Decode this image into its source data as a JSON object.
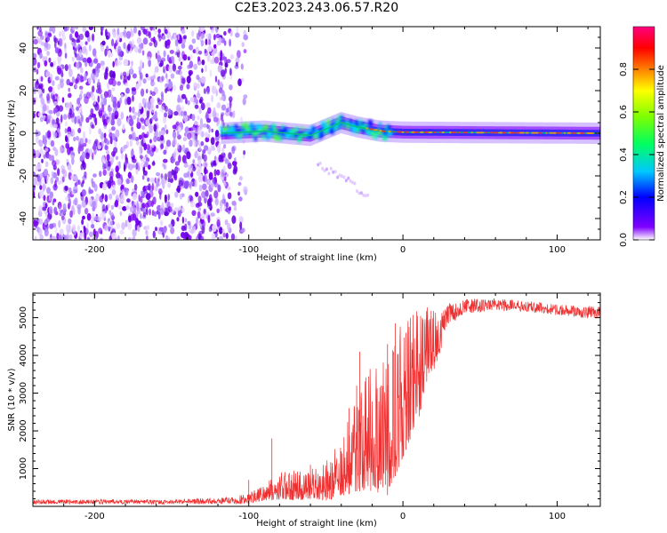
{
  "title": "C2E3.2023.243.06.57.R20",
  "chart_data": [
    {
      "type": "heatmap",
      "title": "C2E3.2023.243.06.57.R20",
      "xlabel": "Height of straight line (km)",
      "ylabel": "Frequency (Hz)",
      "xlim": [
        -240,
        128
      ],
      "ylim": [
        -50,
        50
      ],
      "xticks": [
        -200,
        -100,
        0,
        100
      ],
      "yticks": [
        -40,
        -20,
        0,
        20,
        40
      ],
      "colorbar": {
        "label": "Normalized spectral amplitude",
        "range": [
          0,
          1
        ],
        "ticks": [
          "0.0",
          "0.2",
          "0.4",
          "0.6",
          "0.8"
        ],
        "colormap": "rainbow",
        "colors": [
          "#ffffff",
          "#8000ff",
          "#0000ff",
          "#00c8ff",
          "#00ff60",
          "#80ff00",
          "#ffff00",
          "#ff8000",
          "#ff0000",
          "#ff0080"
        ]
      },
      "regions": [
        {
          "name": "noise",
          "x_range": [
            -240,
            -110
          ],
          "y_range": [
            -50,
            50
          ],
          "amplitude": 0.05
        },
        {
          "name": "signal",
          "x_range": [
            -118,
            128
          ],
          "center_hz": [
            [
              -118,
              0
            ],
            [
              -90,
              1
            ],
            [
              -60,
              -1
            ],
            [
              -40,
              5
            ],
            [
              -30,
              3
            ],
            [
              -15,
              1
            ],
            [
              0,
              0.5
            ],
            [
              128,
              0
            ]
          ],
          "amplitude": [
            0.3,
            0.9
          ]
        },
        {
          "name": "branch",
          "x_range": [
            -55,
            -22
          ],
          "center_hz": [
            [
              -55,
              -15
            ],
            [
              -35,
              -22
            ],
            [
              -25,
              -29
            ]
          ],
          "amplitude": 0.1
        }
      ]
    },
    {
      "type": "line",
      "xlabel": "Height of straight line (km)",
      "ylabel": "SNR (10 * v/v)",
      "xlim": [
        -240,
        128
      ],
      "ylim": [
        0,
        5650
      ],
      "xticks": [
        -200,
        -100,
        0,
        100
      ],
      "yticks": [
        1000,
        2000,
        3000,
        4000,
        5000
      ],
      "color": "#f03030",
      "envelope": {
        "x": [
          -240,
          -200,
          -150,
          -110,
          -100,
          -90,
          -80,
          -70,
          -60,
          -50,
          -40,
          -30,
          -20,
          -10,
          0,
          10,
          20,
          30,
          40,
          60,
          80,
          100,
          128
        ],
        "low": [
          60,
          60,
          60,
          60,
          80,
          150,
          180,
          150,
          200,
          150,
          250,
          400,
          400,
          300,
          1300,
          2300,
          3600,
          4800,
          5100,
          5200,
          5150,
          5050,
          4950
        ],
        "high": [
          180,
          180,
          180,
          250,
          350,
          600,
          900,
          1000,
          1000,
          1200,
          1800,
          2900,
          3800,
          3900,
          5100,
          5250,
          5300,
          5400,
          5500,
          5500,
          5450,
          5350,
          5300
        ]
      },
      "spikes": [
        {
          "x": -100,
          "y": 700
        },
        {
          "x": -85,
          "y": 1800
        },
        {
          "x": -60,
          "y": 1100
        },
        {
          "x": -35,
          "y": 2600
        },
        {
          "x": -30,
          "y": 3200
        },
        {
          "x": -28,
          "y": 4100
        },
        {
          "x": -10,
          "y": 4300
        },
        {
          "x": -5,
          "y": 4850
        },
        {
          "x": 2,
          "y": 4600
        }
      ]
    }
  ]
}
